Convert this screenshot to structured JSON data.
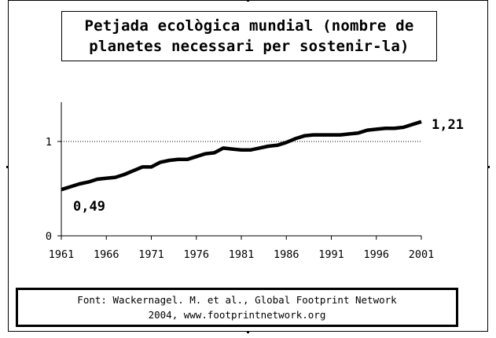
{
  "title": "Petjada ecològica mundial (nombre de\nplanetes necessari per sostenir-la)",
  "source": "Font: Wackernagel. M. et al., Global Footprint Network\n2004, www.footprintnetwork.org",
  "chart_data": {
    "type": "line",
    "title": "Petjada ecològica mundial (nombre de planetes necessari per sostenir-la)",
    "xlabel": "",
    "ylabel": "",
    "x_ticks": [
      "1961",
      "1966",
      "1971",
      "1976",
      "1981",
      "1986",
      "1991",
      "1996",
      "2001"
    ],
    "y_ticks": [
      "0",
      "1"
    ],
    "xlim": [
      1961,
      2001
    ],
    "ylim": [
      0,
      1.42
    ],
    "reference_line": {
      "y": 1,
      "style": "dotted"
    },
    "series": [
      {
        "name": "",
        "x": [
          1961,
          1962,
          1963,
          1964,
          1965,
          1966,
          1967,
          1968,
          1969,
          1970,
          1971,
          1972,
          1973,
          1974,
          1975,
          1976,
          1977,
          1978,
          1979,
          1980,
          1981,
          1982,
          1983,
          1984,
          1985,
          1986,
          1987,
          1988,
          1989,
          1990,
          1991,
          1992,
          1993,
          1994,
          1995,
          1996,
          1997,
          1998,
          1999,
          2000,
          2001
        ],
        "y": [
          0.49,
          0.52,
          0.55,
          0.57,
          0.6,
          0.61,
          0.62,
          0.65,
          0.69,
          0.73,
          0.73,
          0.78,
          0.8,
          0.81,
          0.81,
          0.84,
          0.87,
          0.88,
          0.93,
          0.92,
          0.91,
          0.91,
          0.93,
          0.95,
          0.96,
          0.99,
          1.03,
          1.06,
          1.07,
          1.07,
          1.07,
          1.07,
          1.08,
          1.09,
          1.12,
          1.13,
          1.14,
          1.14,
          1.15,
          1.18,
          1.21
        ]
      }
    ],
    "data_labels": [
      {
        "text": "0,49"
      },
      {
        "text": "1,21"
      }
    ],
    "grid": false,
    "colors": {
      "line": "#000000",
      "axis": "#000000"
    }
  }
}
